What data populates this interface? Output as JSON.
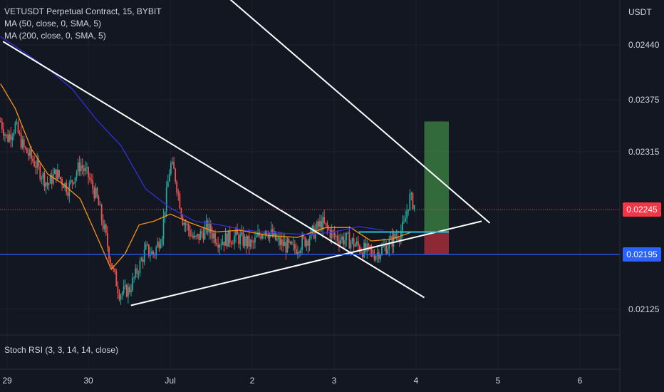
{
  "legend": {
    "title": "VETUSDT Perpetual Contract, 15, BYBIT",
    "ma1": "MA (50, close, 0, SMA, 5)",
    "ma2": "MA (200, close, 0, SMA, 5)"
  },
  "oscillator_label": "Stoch RSI (3, 3, 14, 14, close)",
  "currency_label": "USDT",
  "colors": {
    "background": "#131722",
    "grid": "#1e222d",
    "text": "#d1d4dc",
    "candle_up": "#26a69a",
    "candle_down": "#ef5350",
    "ma50": "#f7931a",
    "ma200": "#3030d8",
    "trendline": "#ffffff",
    "support_line": "#2962ff",
    "last_price_badge": "#f23645",
    "support_badge": "#2962ff",
    "profit_zone": "#4caf50",
    "loss_zone": "#f23645",
    "entry_line": "#26c6da"
  },
  "chart_data": {
    "type": "candlestick",
    "symbol": "VETUSDT",
    "timeframe": "15",
    "exchange": "BYBIT",
    "x_tick_labels": [
      "29",
      "30",
      "Jul",
      "2",
      "3",
      "4",
      "5",
      "6"
    ],
    "y_tick_labels": [
      "0.02440",
      "0.02375",
      "0.02315",
      "0.02245",
      "0.02195",
      "0.02125"
    ],
    "ylim": [
      0.021,
      0.0247
    ],
    "last_price": "0.02245",
    "support_level": "0.02195",
    "series": [
      {
        "name": "MA (50, close, 0, SMA, 5)",
        "points": [
          [
            28.92,
            0.02394
          ],
          [
            29.1,
            0.02365
          ],
          [
            29.3,
            0.02318
          ],
          [
            29.5,
            0.02288
          ],
          [
            29.7,
            0.02275
          ],
          [
            29.9,
            0.02258
          ],
          [
            30.1,
            0.02216
          ],
          [
            30.28,
            0.02176
          ],
          [
            30.45,
            0.02196
          ],
          [
            30.62,
            0.02228
          ],
          [
            30.8,
            0.02232
          ],
          [
            31.0,
            0.0224
          ],
          [
            31.25,
            0.0223
          ],
          [
            31.55,
            0.0222
          ],
          [
            31.85,
            0.02222
          ],
          [
            32.2,
            0.02216
          ],
          [
            32.55,
            0.02214
          ],
          [
            32.9,
            0.02225
          ],
          [
            33.2,
            0.02225
          ],
          [
            33.45,
            0.0221
          ],
          [
            33.7,
            0.02212
          ],
          [
            33.95,
            0.0222
          ]
        ]
      },
      {
        "name": "MA (200, close, 0, SMA, 5)",
        "points": [
          [
            28.92,
            0.0245
          ],
          [
            29.2,
            0.02432
          ],
          [
            29.5,
            0.02412
          ],
          [
            29.8,
            0.02388
          ],
          [
            30.1,
            0.02352
          ],
          [
            30.4,
            0.02322
          ],
          [
            30.7,
            0.0227
          ],
          [
            31.0,
            0.02247
          ],
          [
            31.3,
            0.02232
          ],
          [
            31.6,
            0.02228
          ],
          [
            31.9,
            0.02222
          ],
          [
            32.3,
            0.02219
          ],
          [
            32.7,
            0.02217
          ],
          [
            33.0,
            0.0222
          ],
          [
            33.3,
            0.02226
          ],
          [
            33.6,
            0.02222
          ]
        ]
      }
    ],
    "drawings": {
      "descending_channel_upper": [
        [
          31.0,
          0.02555
        ],
        [
          34.9,
          0.0223
        ]
      ],
      "descending_channel_lower": [
        [
          28.95,
          0.02444
        ],
        [
          34.1,
          0.0214
        ]
      ],
      "ascending_support": [
        [
          30.52,
          0.0213
        ],
        [
          34.8,
          0.02232
        ]
      ],
      "entry_level": 0.0222,
      "take_profit": 0.0235,
      "stop_loss": 0.02195
    },
    "grid": true
  }
}
